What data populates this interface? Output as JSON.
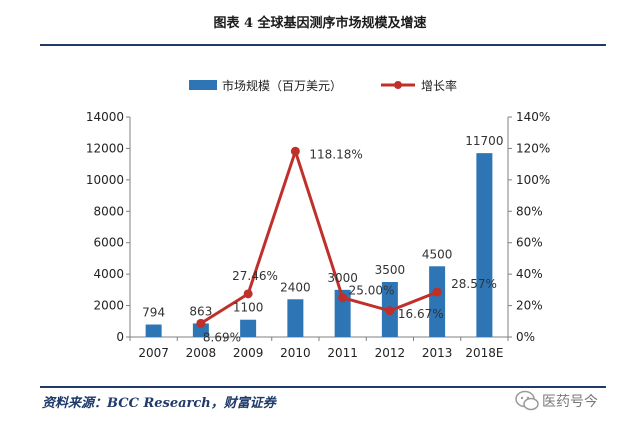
{
  "title": "图表 4 全球基因测序市场规模及增速",
  "source": "资料来源：BCC Research，财富证券",
  "watermark": "医药号今",
  "chart_data": {
    "type": "bar+line",
    "categories": [
      "2007",
      "2008",
      "2009",
      "2010",
      "2011",
      "2012",
      "2013",
      "2018E"
    ],
    "series": [
      {
        "name": "市场规模（百万美元）",
        "type": "bar",
        "axis": "left",
        "values": [
          794,
          863,
          1100,
          2400,
          3000,
          3500,
          4500,
          11700
        ],
        "labels": [
          "794",
          "863",
          "1100",
          "2400",
          "3000",
          "3500",
          "4500",
          "11700"
        ],
        "color": "#2e75b6"
      },
      {
        "name": "增长率",
        "type": "line",
        "axis": "right",
        "values": [
          null,
          8.69,
          27.46,
          118.18,
          25.0,
          16.67,
          28.57,
          null
        ],
        "labels": [
          "",
          "8.69%",
          "27.46%",
          "118.18%",
          "25.00%",
          "16.67%",
          "28.57%",
          ""
        ],
        "color": "#c0302a"
      }
    ],
    "y_left": {
      "min": 0,
      "max": 14000,
      "ticks": [
        "0",
        "2000",
        "4000",
        "6000",
        "8000",
        "10000",
        "12000",
        "14000"
      ]
    },
    "y_right": {
      "min": 0,
      "max": 140,
      "ticks": [
        "0%",
        "20%",
        "40%",
        "60%",
        "80%",
        "100%",
        "120%",
        "140%"
      ]
    },
    "legend_position": "top",
    "grid": false
  }
}
